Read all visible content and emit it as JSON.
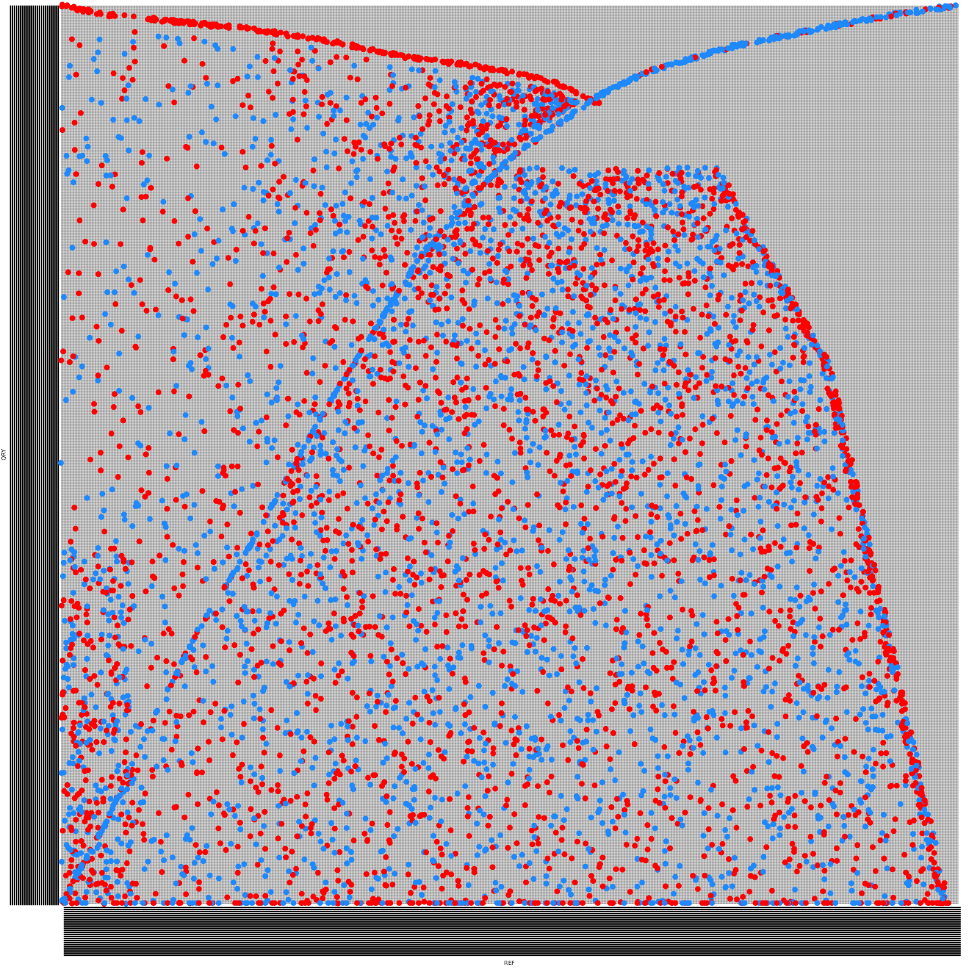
{
  "chart_data": {
    "type": "scatter",
    "title": "",
    "xlabel": "REF",
    "ylabel": "QRY",
    "grid": true,
    "legend": "none",
    "colors": {
      "forward": "#ff0000",
      "reverse": "#1e88ff",
      "grid": "#ffffff",
      "panel": "#a3a3a3",
      "tick_band": "#000000"
    },
    "xlim": [
      0,
      1.0
    ],
    "ylim": [
      0,
      1.0
    ],
    "series": [
      {
        "color": "#ff0000",
        "description_points": [
          [
            0.0,
            1.0
          ],
          [
            0.05,
            0.99
          ],
          [
            0.1,
            0.985
          ],
          [
            0.15,
            0.98
          ],
          [
            0.2,
            0.975
          ],
          [
            0.25,
            0.968
          ],
          [
            0.3,
            0.96
          ],
          [
            0.35,
            0.95
          ],
          [
            0.4,
            0.94
          ],
          [
            0.45,
            0.935
          ],
          [
            0.5,
            0.925
          ],
          [
            0.55,
            0.915
          ],
          [
            0.57,
            0.905
          ],
          [
            0.6,
            0.89
          ]
        ]
      },
      {
        "color": "#1e88ff",
        "description_points": [
          [
            0.0,
            0.0
          ],
          [
            0.05,
            0.09
          ],
          [
            0.1,
            0.2
          ],
          [
            0.15,
            0.3
          ],
          [
            0.2,
            0.38
          ],
          [
            0.25,
            0.47
          ],
          [
            0.3,
            0.56
          ],
          [
            0.35,
            0.64
          ],
          [
            0.4,
            0.72
          ],
          [
            0.45,
            0.78
          ],
          [
            0.5,
            0.83
          ],
          [
            0.55,
            0.865
          ],
          [
            0.6,
            0.9
          ],
          [
            0.65,
            0.925
          ],
          [
            0.7,
            0.94
          ],
          [
            0.75,
            0.955
          ],
          [
            0.8,
            0.965
          ],
          [
            0.85,
            0.975
          ],
          [
            0.9,
            0.985
          ],
          [
            0.95,
            0.993
          ],
          [
            1.0,
            1.0
          ]
        ]
      }
    ]
  }
}
